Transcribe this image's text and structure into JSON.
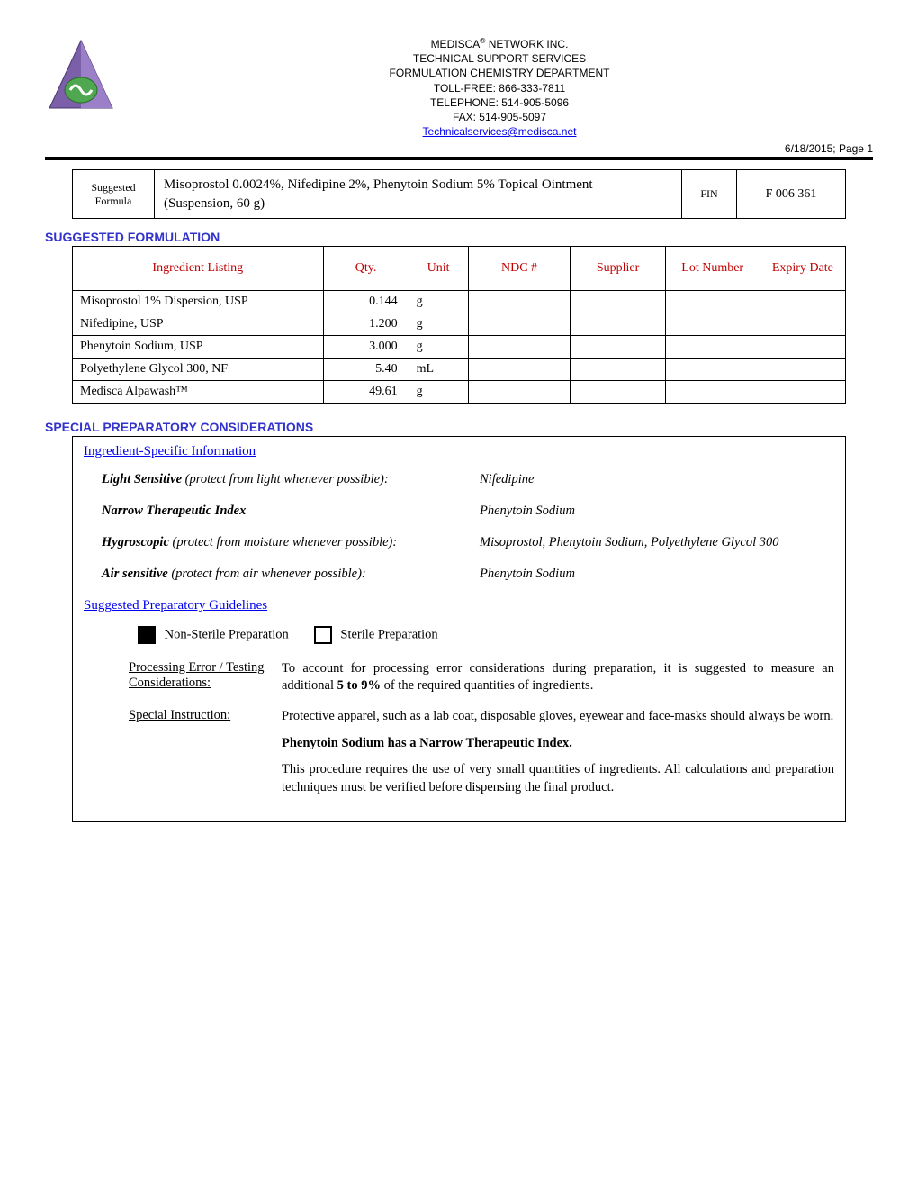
{
  "header": {
    "company": "MEDISCA",
    "company_suffix": " NETWORK INC.",
    "dept1": "TECHNICAL SUPPORT SERVICES",
    "dept2": "FORMULATION CHEMISTRY DEPARTMENT",
    "tollfree": "TOLL-FREE: 866-333-7811",
    "telephone": "TELEPHONE: 514-905-5096",
    "fax": "FAX: 514-905-5097",
    "email": "Technicalservices@medisca.net",
    "date_page": "6/18/2015; Page 1"
  },
  "formula_box": {
    "label_top": "Suggested",
    "label_bottom": "Formula",
    "title_line1": "Misoprostol 0.0024%, Nifedipine 2%, Phenytoin Sodium 5% Topical Ointment",
    "title_line2": "(Suspension, 60 g)",
    "fin": "FIN",
    "code": "F 006 361"
  },
  "section_formulation": "SUGGESTED FORMULATION",
  "ingredients": {
    "headers": [
      "Ingredient Listing",
      "Qty.",
      "Unit",
      "NDC #",
      "Supplier",
      "Lot Number",
      "Expiry Date"
    ],
    "col_widths": [
      "270px",
      "80px",
      "50px",
      "100px",
      "90px",
      "90px",
      "80px"
    ],
    "rows": [
      {
        "name": "Misoprostol 1% Dispersion, USP",
        "qty": "0.144",
        "unit": "g"
      },
      {
        "name": "Nifedipine, USP",
        "qty": "1.200",
        "unit": "g"
      },
      {
        "name": "Phenytoin Sodium, USP",
        "qty": "3.000",
        "unit": "g"
      },
      {
        "name": "Polyethylene Glycol 300, NF",
        "qty": "5.40",
        "unit": "mL"
      },
      {
        "name": "Medisca Alpawash™",
        "qty": "49.61",
        "unit": "g"
      }
    ]
  },
  "section_prep": "SPECIAL PREPARATORY CONSIDERATIONS",
  "considerations": {
    "subhead1": "Ingredient-Specific Information",
    "rows": [
      {
        "label_bold": "Light Sensitive",
        "label_rest": " (protect from light whenever possible):",
        "value": "Nifedipine"
      },
      {
        "label_bold": "Narrow Therapeutic Index",
        "label_rest": "",
        "value": "Phenytoin Sodium"
      },
      {
        "label_bold": "Hygroscopic",
        "label_rest": " (protect from moisture whenever possible):",
        "value": "Misoprostol, Phenytoin Sodium, Polyethylene Glycol 300"
      },
      {
        "label_bold": "Air sensitive",
        "label_rest": " (protect from air whenever possible):",
        "value": "Phenytoin Sodium"
      }
    ],
    "subhead2": "Suggested Preparatory Guidelines",
    "checkboxes": {
      "non_sterile": {
        "label": "Non-Sterile Preparation",
        "checked": true
      },
      "sterile": {
        "label": "Sterile Preparation",
        "checked": false
      }
    },
    "processing": {
      "label": "Processing Error / Testing Considerations:",
      "text_pre": "To account for processing error considerations during preparation, it is suggested to measure an additional ",
      "text_bold": "5 to 9%",
      "text_post": " of the required quantities of ingredients."
    },
    "special": {
      "label": "Special Instruction:",
      "p1": "Protective apparel, such as a lab coat, disposable gloves, eyewear and face-masks should always be worn.",
      "p2": "Phenytoin Sodium has a Narrow Therapeutic Index.",
      "p3": "This procedure requires the use of very small quantities of ingredients. All calculations and preparation techniques must be verified before dispensing the final product."
    }
  },
  "colors": {
    "section_title": "#3333cc",
    "table_header": "#c00000",
    "link": "#0000EE",
    "logo_purple": "#7b5fa8",
    "logo_green": "#4fa84f"
  }
}
